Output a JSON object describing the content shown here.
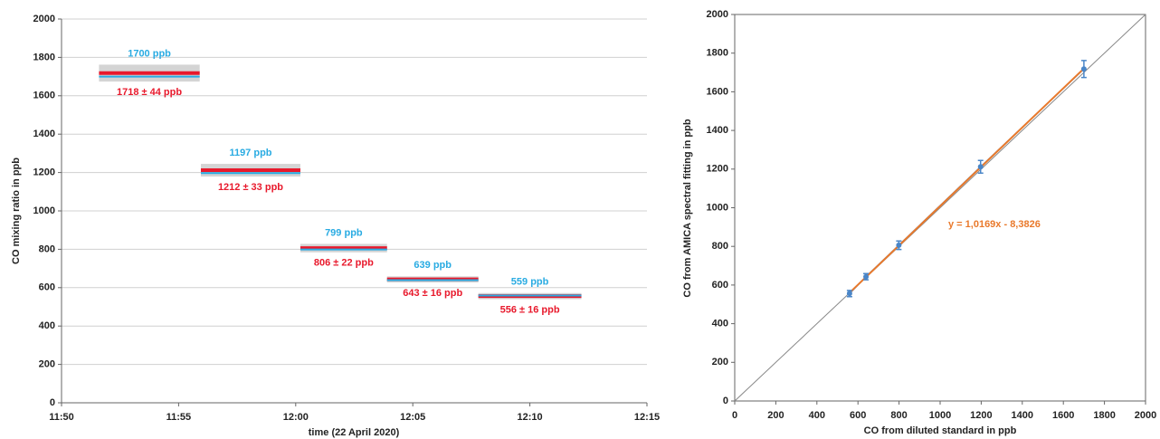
{
  "chart_data": [
    {
      "type": "plateaus",
      "xlabel": "time (22 April 2020)",
      "ylabel": "CO mixing ratio in ppb",
      "xlim": [
        710,
        735
      ],
      "xticks": [
        {
          "value": 710,
          "label": "11:50"
        },
        {
          "value": 715,
          "label": "11:55"
        },
        {
          "value": 720,
          "label": "12:00"
        },
        {
          "value": 725,
          "label": "12:05"
        },
        {
          "value": 730,
          "label": "12:10"
        },
        {
          "value": 735,
          "label": "12:15"
        }
      ],
      "ylim": [
        0,
        2000
      ],
      "yticks": [
        0,
        200,
        400,
        600,
        800,
        1000,
        1200,
        1400,
        1600,
        1800,
        2000
      ],
      "grid": true,
      "reference_color": "#29abe2",
      "measured_color": "#e8192c",
      "plateaus": [
        {
          "start": 711.6,
          "end": 715.9,
          "reference": 1700,
          "reference_label": "1700 ppb",
          "measured": 1718,
          "error": 44,
          "measured_label": "1718 ± 44 ppb"
        },
        {
          "start": 715.95,
          "end": 720.2,
          "reference": 1197,
          "reference_label": "1197 ppb",
          "measured": 1212,
          "error": 33,
          "measured_label": "1212 ± 33 ppb"
        },
        {
          "start": 720.2,
          "end": 723.9,
          "reference": 799,
          "reference_label": "799 ppb",
          "measured": 806,
          "error": 22,
          "measured_label": "806 ± 22 ppb"
        },
        {
          "start": 723.9,
          "end": 727.8,
          "reference": 639,
          "reference_label": "639 ppb",
          "measured": 643,
          "error": 16,
          "measured_label": "643 ± 16 ppb"
        },
        {
          "start": 727.8,
          "end": 732.2,
          "reference": 559,
          "reference_label": "559 ppb",
          "measured": 556,
          "error": 16,
          "measured_label": "556 ± 16 ppb"
        }
      ]
    },
    {
      "type": "scatter",
      "xlabel": "CO from diluted standard in ppb",
      "ylabel": "CO from AMICA spectral fitting in ppb",
      "xlim": [
        0,
        2000
      ],
      "xticks": [
        0,
        200,
        400,
        600,
        800,
        1000,
        1200,
        1400,
        1600,
        1800,
        2000
      ],
      "ylim": [
        0,
        2000
      ],
      "yticks": [
        0,
        200,
        400,
        600,
        800,
        1000,
        1200,
        1400,
        1600,
        1800,
        2000
      ],
      "color": "#4a86c8",
      "x": [
        559,
        639,
        799,
        1197,
        1700
      ],
      "y": [
        556,
        643,
        806,
        1212,
        1718
      ],
      "errors": [
        16,
        16,
        22,
        33,
        44
      ],
      "fit": {
        "slope": 1.0169,
        "intercept": -8.3826,
        "label": "y = 1,0169x - 8,3826",
        "color": "#e9792b"
      }
    }
  ]
}
